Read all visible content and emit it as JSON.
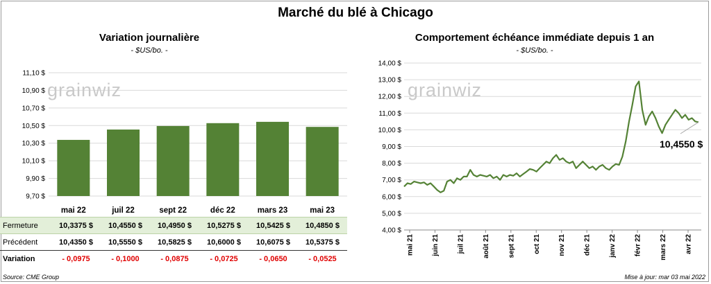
{
  "title": "Marché du blé à Chicago",
  "left": {
    "title": "Variation journalière",
    "unit": "- $US/bo. -",
    "watermark": "grainwiz",
    "table": {
      "rows": [
        {
          "label": "Fermeture",
          "values": [
            "10,3375 $",
            "10,4550 $",
            "10,4950 $",
            "10,5275 $",
            "10,5425 $",
            "10,4850 $"
          ]
        },
        {
          "label": "Précédent",
          "values": [
            "10,4350 $",
            "10,5550 $",
            "10,5825 $",
            "10,6000 $",
            "10,6075 $",
            "10,5375 $"
          ]
        },
        {
          "label": "Variation",
          "values": [
            "- 0,0975",
            "- 0,1000",
            "- 0,0875",
            "- 0,0725",
            "- 0,0650",
            "- 0,0525"
          ]
        }
      ]
    }
  },
  "right": {
    "title": "Comportement  échéance immédiate depuis 1 an",
    "unit": "- $US/bo. -",
    "watermark": "grainwiz",
    "last_label": "10,4550 $"
  },
  "footer": {
    "source": "Source: CME Group",
    "updated": "Mise à jour: mar 03 mai 2022"
  },
  "colors": {
    "bar": "#548235",
    "line": "#548235",
    "negative": "#e00000",
    "highlight_row": "#e3efd9"
  },
  "chart_data": [
    {
      "type": "bar",
      "title": "Variation journalière",
      "categories": [
        "mai 22",
        "juil 22",
        "sept 22",
        "déc 22",
        "mars 23",
        "mai 23"
      ],
      "values": [
        10.3375,
        10.455,
        10.495,
        10.5275,
        10.5425,
        10.485
      ],
      "ylim": [
        9.7,
        11.1
      ],
      "yticks": [
        "9,70 $",
        "9,90 $",
        "10,10 $",
        "10,30 $",
        "10,50 $",
        "10,70 $",
        "10,90 $",
        "11,10 $"
      ],
      "ytick_values": [
        9.7,
        9.9,
        10.1,
        10.3,
        10.5,
        10.7,
        10.9,
        11.1
      ],
      "grid": "horizontal"
    },
    {
      "type": "line",
      "title": "Comportement  échéance immédiate depuis 1 an",
      "series": [
        {
          "values": [
            6.6,
            6.8,
            6.75,
            6.9,
            6.85,
            6.8,
            6.85,
            6.7,
            6.8,
            6.6,
            6.4,
            6.25,
            6.35,
            6.9,
            7.0,
            6.8,
            7.1,
            7.0,
            7.2,
            7.2,
            7.6,
            7.3,
            7.2,
            7.3,
            7.25,
            7.2,
            7.3,
            7.1,
            7.2,
            7.0,
            7.3,
            7.2,
            7.3,
            7.25,
            7.4,
            7.2,
            7.35,
            7.5,
            7.65,
            7.6,
            7.5,
            7.7,
            7.9,
            8.1,
            8.0,
            8.3,
            8.5,
            8.2,
            8.3,
            8.1,
            8.0,
            8.1,
            7.7,
            7.9,
            8.1,
            7.9,
            7.7,
            7.8,
            7.6,
            7.8,
            7.9,
            7.7,
            7.6,
            7.8,
            7.95,
            7.9,
            8.4,
            9.3,
            10.5,
            11.5,
            12.6,
            12.9,
            11.2,
            10.3,
            10.8,
            11.1,
            10.7,
            10.2,
            9.8,
            10.3,
            10.6,
            10.9,
            11.2,
            11.0,
            10.7,
            10.9,
            10.6,
            10.7,
            10.5,
            10.455
          ]
        }
      ],
      "x_labels": [
        "mai 21",
        "juin 21",
        "juil 21",
        "août 21",
        "sept 21",
        "oct 21",
        "nov 21",
        "déc 21",
        "janv 22",
        "févr 22",
        "mars 22",
        "avr 22"
      ],
      "ylim": [
        4.0,
        14.0
      ],
      "yticks": [
        "4,00 $",
        "5,00 $",
        "6,00 $",
        "7,00 $",
        "8,00 $",
        "9,00 $",
        "10,00 $",
        "11,00 $",
        "12,00 $",
        "13,00 $",
        "14,00 $"
      ],
      "ytick_values": [
        4,
        5,
        6,
        7,
        8,
        9,
        10,
        11,
        12,
        13,
        14
      ],
      "last_value": 10.455,
      "grid": "horizontal"
    }
  ]
}
